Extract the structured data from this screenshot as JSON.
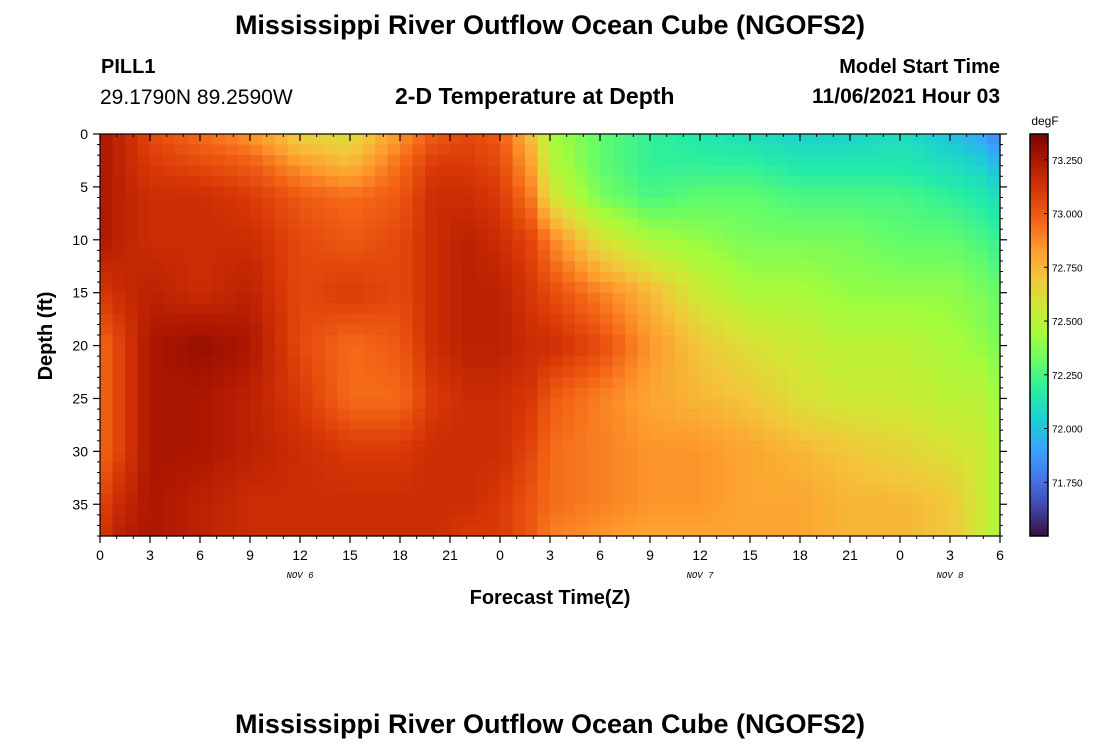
{
  "header": {
    "title": "Mississippi River Outflow Ocean Cube (NGOFS2)",
    "station_id": "PILL1",
    "coordinates": "29.1790N  89.2590W",
    "subtitle": "2-D Temperature at Depth",
    "model_start_label": "Model Start Time",
    "model_start_value": "11/06/2021 Hour 03"
  },
  "footer": {
    "title": "Mississippi River Outflow Ocean Cube (NGOFS2)"
  },
  "chart_data": {
    "type": "heatmap",
    "title": "2-D Temperature at Depth",
    "xlabel": "Forecast Time(Z)",
    "ylabel": "Depth (ft)",
    "x_tick_labels": [
      "0",
      "3",
      "6",
      "9",
      "12",
      "15",
      "18",
      "21",
      "0",
      "3",
      "6",
      "9",
      "12",
      "15",
      "18",
      "21",
      "0",
      "3",
      "6"
    ],
    "day_labels": [
      {
        "text": "NOV 6",
        "at_tick": 4
      },
      {
        "text": "NOV 7",
        "at_tick": 12
      },
      {
        "text": "NOV 8",
        "at_tick": 17
      }
    ],
    "x_range_hours": [
      0,
      54
    ],
    "y_ticks": [
      0,
      5,
      10,
      15,
      20,
      25,
      30,
      35
    ],
    "y_range": [
      0,
      38
    ],
    "y_inverted": true,
    "colorbar": {
      "unit": "degF",
      "range": [
        71.5,
        73.37
      ],
      "ticks": [
        "73.250",
        "73.000",
        "72.750",
        "72.500",
        "72.250",
        "72.000",
        "71.750"
      ],
      "tick_values": [
        73.25,
        73.0,
        72.75,
        72.5,
        72.25,
        72.0,
        71.75
      ],
      "colors": [
        "#30123b",
        "#4145ab",
        "#4675ed",
        "#39a2fc",
        "#1bcfd4",
        "#24eca6",
        "#61fc6c",
        "#a4fc3b",
        "#d1e834",
        "#f3c63a",
        "#fe9b2d",
        "#f36315",
        "#d93806",
        "#b11901",
        "#7a0402"
      ]
    },
    "anchors": {
      "hours": [
        0,
        1,
        3,
        6,
        9,
        12,
        15,
        18,
        20,
        22,
        24,
        26,
        27,
        30,
        33,
        36,
        39,
        42,
        45,
        48,
        51,
        53,
        54
      ],
      "depths": [
        0,
        3,
        6,
        10,
        15,
        20,
        25,
        30,
        35,
        38
      ],
      "values_by_depth": [
        [
          73.25,
          73.2,
          73.05,
          72.95,
          72.85,
          72.65,
          72.6,
          72.85,
          73.0,
          73.05,
          73.0,
          72.7,
          72.45,
          72.3,
          72.2,
          72.15,
          72.1,
          72.05,
          72.05,
          72.1,
          72.0,
          71.9,
          71.8
        ],
        [
          73.25,
          73.2,
          73.1,
          73.05,
          73.0,
          72.85,
          72.75,
          72.95,
          73.1,
          73.1,
          73.05,
          72.8,
          72.5,
          72.3,
          72.2,
          72.2,
          72.2,
          72.15,
          72.15,
          72.15,
          72.1,
          72.05,
          71.95
        ],
        [
          73.25,
          73.2,
          73.15,
          73.15,
          73.1,
          73.0,
          72.95,
          73.0,
          73.15,
          73.15,
          73.1,
          72.9,
          72.6,
          72.35,
          72.25,
          72.3,
          72.3,
          72.25,
          72.25,
          72.25,
          72.2,
          72.15,
          72.1
        ],
        [
          73.25,
          73.2,
          73.15,
          73.15,
          73.15,
          73.05,
          73.0,
          73.05,
          73.15,
          73.2,
          73.15,
          73.05,
          72.9,
          72.6,
          72.45,
          72.4,
          72.35,
          72.35,
          72.35,
          72.3,
          72.3,
          72.25,
          72.2
        ],
        [
          73.1,
          73.15,
          73.2,
          73.15,
          73.2,
          73.05,
          73.1,
          73.05,
          73.15,
          73.2,
          73.2,
          73.1,
          73.05,
          72.9,
          72.75,
          72.55,
          72.45,
          72.45,
          72.4,
          72.4,
          72.4,
          72.35,
          72.3
        ],
        [
          72.95,
          73.05,
          73.25,
          73.3,
          73.25,
          73.05,
          72.95,
          73.0,
          73.15,
          73.2,
          73.2,
          73.15,
          73.15,
          73.05,
          72.85,
          72.7,
          72.6,
          72.55,
          72.5,
          72.5,
          72.45,
          72.4,
          72.35
        ],
        [
          72.95,
          73.05,
          73.25,
          73.25,
          73.2,
          73.1,
          72.95,
          72.95,
          73.1,
          73.15,
          73.15,
          73.1,
          73.0,
          72.9,
          72.8,
          72.75,
          72.7,
          72.6,
          72.55,
          72.55,
          72.5,
          72.5,
          72.4
        ],
        [
          72.95,
          73.05,
          73.25,
          73.25,
          73.2,
          73.15,
          73.1,
          73.1,
          73.15,
          73.15,
          73.15,
          73.05,
          72.95,
          72.9,
          72.85,
          72.85,
          72.8,
          72.75,
          72.7,
          72.65,
          72.6,
          72.55,
          72.45
        ],
        [
          73.05,
          73.15,
          73.25,
          73.2,
          73.15,
          73.15,
          73.15,
          73.15,
          73.15,
          73.15,
          73.1,
          73.0,
          72.95,
          72.9,
          72.85,
          72.85,
          72.8,
          72.8,
          72.75,
          72.75,
          72.7,
          72.55,
          72.45
        ],
        [
          73.1,
          73.2,
          73.25,
          73.2,
          73.15,
          73.15,
          73.15,
          73.15,
          73.15,
          73.1,
          73.1,
          73.0,
          72.9,
          72.85,
          72.8,
          72.8,
          72.8,
          72.8,
          72.75,
          72.75,
          72.7,
          72.55,
          72.45
        ]
      ]
    }
  }
}
